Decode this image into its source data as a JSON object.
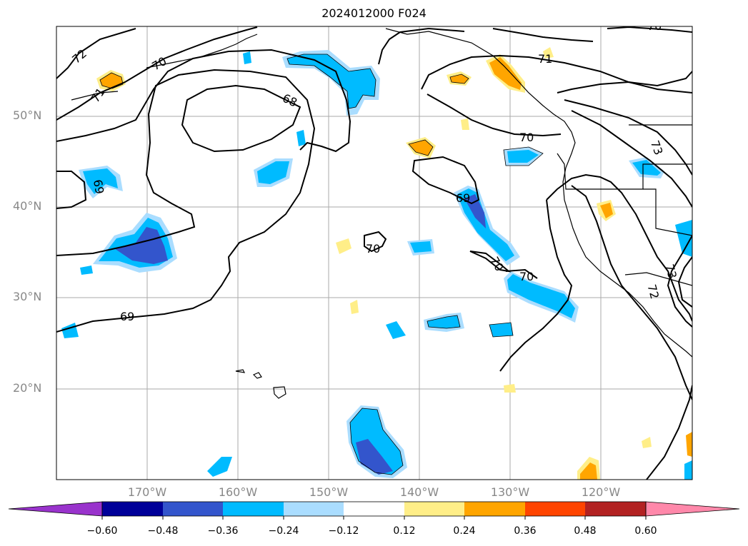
{
  "title": "2024012000 F024",
  "map": {
    "lat_labels": [
      "50°N",
      "40°N",
      "30°N",
      "20°N"
    ],
    "lon_labels": [
      "170°W",
      "160°W",
      "150°W",
      "140°W",
      "130°W",
      "120°W"
    ],
    "contour_labels": [
      "72",
      "70",
      "71",
      "68",
      "70",
      "71",
      "69",
      "70",
      "69",
      "70",
      "70",
      "70",
      "69",
      "73",
      "73",
      "72",
      "70"
    ]
  },
  "colorbar": {
    "ticks": [
      "−0.60",
      "−0.48",
      "−0.36",
      "−0.24",
      "−0.12",
      "0.12",
      "0.24",
      "0.36",
      "0.48",
      "0.60"
    ],
    "colors": [
      "#9933cc",
      "#000099",
      "#3355cc",
      "#00bbff",
      "#aaddff",
      "#ffffff",
      "#ffee88",
      "#ffa500",
      "#ff4400",
      "#b22222",
      "#ff88aa"
    ]
  }
}
